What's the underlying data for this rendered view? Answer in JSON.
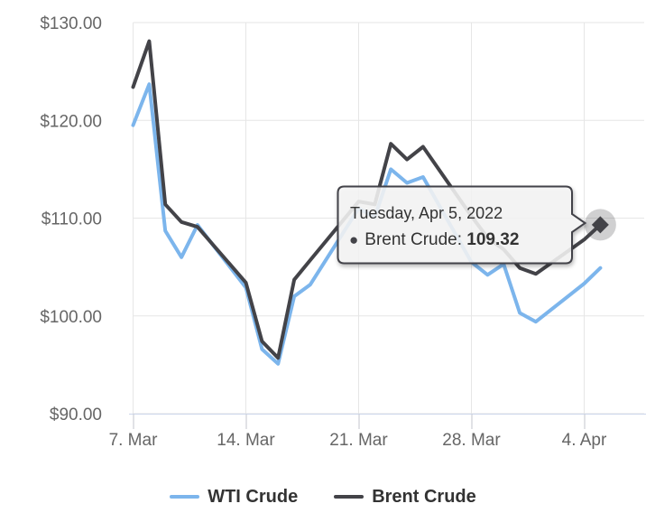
{
  "chart_data": {
    "type": "line",
    "title": "",
    "x_axis": {
      "tick_labels": [
        "7. Mar",
        "14. Mar",
        "21. Mar",
        "28. Mar",
        "4. Apr"
      ],
      "tick_day_offsets": [
        0,
        7,
        14,
        21,
        28
      ]
    },
    "y_axis": {
      "tick_labels": [
        "$90.00",
        "$100.00",
        "$110.00",
        "$120.00",
        "$130.00"
      ],
      "tick_values": [
        90,
        100,
        110,
        120,
        130
      ],
      "range": [
        90,
        130
      ]
    },
    "grid": true,
    "legend_position": "bottom",
    "point_day_offsets": [
      0,
      1,
      2,
      3,
      4,
      7,
      8,
      9,
      10,
      11,
      14,
      15,
      16,
      17,
      18,
      21,
      22,
      23,
      24,
      25,
      28,
      29
    ],
    "series": [
      {
        "name": "WTI Crude",
        "color": "#7cb5ec",
        "values": [
          119.5,
          123.7,
          108.7,
          106.0,
          109.3,
          102.9,
          96.6,
          95.1,
          102.0,
          103.2,
          111.0,
          110.1,
          115.0,
          113.6,
          114.2,
          105.5,
          104.2,
          105.3,
          100.3,
          99.4,
          103.3,
          104.9
        ]
      },
      {
        "name": "Brent Crude",
        "color": "#434348",
        "values": [
          123.4,
          128.1,
          111.4,
          109.6,
          109.1,
          103.4,
          97.4,
          95.7,
          103.7,
          105.7,
          111.7,
          111.4,
          117.6,
          116.0,
          117.3,
          110.2,
          108.0,
          106.8,
          104.9,
          104.3,
          107.8,
          109.32
        ]
      }
    ]
  },
  "tooltip": {
    "title": "Tuesday, Apr 5, 2022",
    "bullet": "●",
    "series_name": "Brent Crude",
    "separator": ": ",
    "value": "109.32",
    "point_day_offset": 29,
    "point_value": 109.32
  },
  "legend": {
    "items": [
      {
        "label": "WTI Crude",
        "color": "#7cb5ec"
      },
      {
        "label": "Brent Crude",
        "color": "#434348"
      }
    ]
  },
  "colors": {
    "grid_line": "#e6e6e6",
    "axis_line": "#ccd6eb",
    "tick_mark": "#c3c6cd",
    "axis_label": "#666666",
    "legend_text": "#333333",
    "tooltip_bg": "rgba(247,247,247,0.85)",
    "tooltip_border": "#434348",
    "halo": "rgba(67,67,72,0.25)"
  }
}
